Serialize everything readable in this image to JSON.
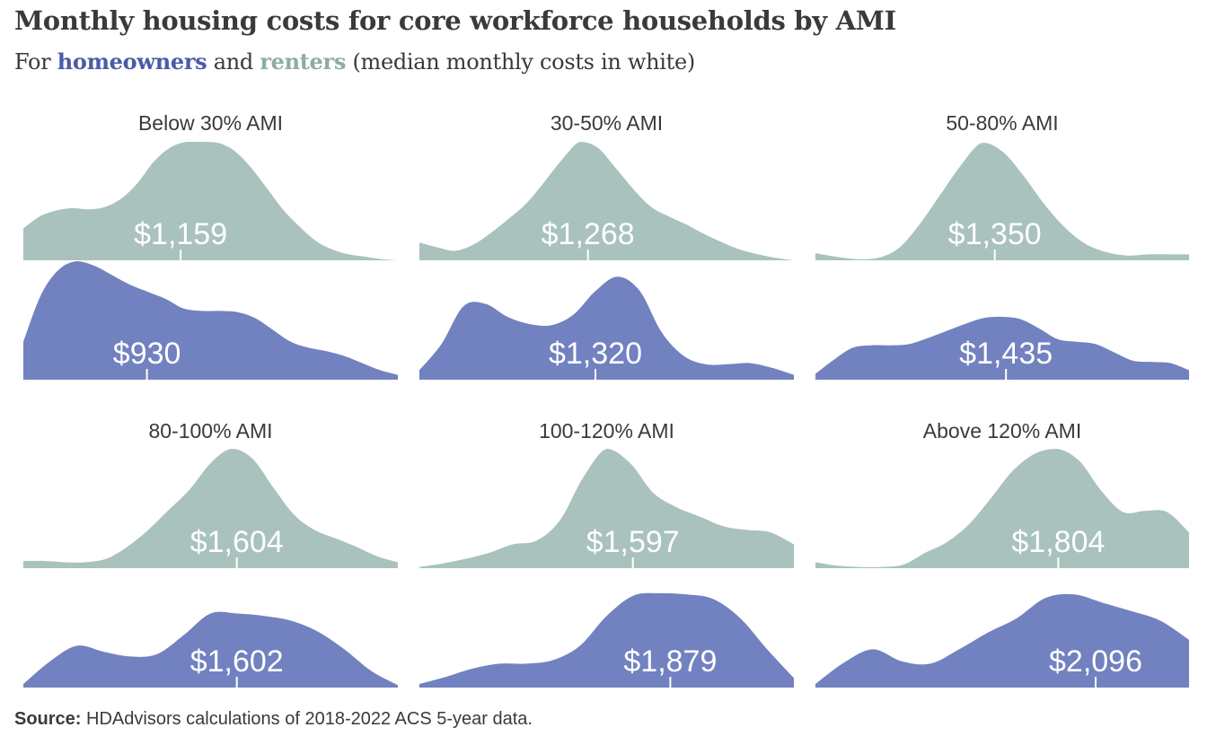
{
  "title": "Monthly housing costs for core workforce households by AMI",
  "subtitle": {
    "prefix": "For",
    "homeowners": "homeowners",
    "middle": "and",
    "renters": "renters",
    "suffix": "(median monthly costs in white)"
  },
  "source": {
    "label": "Source:",
    "text": "HDAdvisors calculations of 2018-2022 ACS 5-year data."
  },
  "colors": {
    "renters": "#a9c2bd",
    "homeowners": "#7281bf",
    "median_text": "#ffffff",
    "tick": "#ffffff"
  },
  "chart_data": {
    "type": "area",
    "description_kind": "density ridgelines",
    "xlim": [
      0,
      1
    ],
    "series": [
      {
        "name": "renters",
        "color": "#a9c2bd",
        "panels": [
          {
            "title": "Below 30% AMI",
            "median": "$1,159",
            "median_pos": 0.42,
            "density": [
              0.27,
              0.37,
              0.42,
              0.44,
              0.43,
              0.45,
              0.52,
              0.65,
              0.83,
              0.95,
              1.0,
              1.0,
              0.99,
              0.92,
              0.78,
              0.6,
              0.42,
              0.28,
              0.16,
              0.09,
              0.05,
              0.03,
              0.01,
              0.0
            ]
          },
          {
            "title": "30-50% AMI",
            "median": "$1,268",
            "median_pos": 0.45,
            "density": [
              0.15,
              0.11,
              0.08,
              0.13,
              0.23,
              0.35,
              0.48,
              0.66,
              0.85,
              1.0,
              0.95,
              0.78,
              0.6,
              0.45,
              0.37,
              0.3,
              0.22,
              0.15,
              0.09,
              0.05,
              0.02,
              0.0
            ]
          },
          {
            "title": "50-80% AMI",
            "median": "$1,350",
            "median_pos": 0.48,
            "density": [
              0.06,
              0.03,
              0.01,
              0.02,
              0.1,
              0.3,
              0.55,
              0.8,
              0.99,
              0.92,
              0.72,
              0.48,
              0.28,
              0.14,
              0.07,
              0.04,
              0.05,
              0.05,
              0.05
            ]
          }
        ]
      },
      {
        "name": "homeowners",
        "color": "#7281bf",
        "panels": [
          {
            "title": "Below 30% AMI",
            "median": "$930",
            "median_pos": 0.33,
            "density": [
              0.32,
              0.72,
              0.93,
              1.0,
              0.96,
              0.88,
              0.8,
              0.74,
              0.68,
              0.6,
              0.58,
              0.58,
              0.57,
              0.52,
              0.42,
              0.32,
              0.27,
              0.24,
              0.2,
              0.14,
              0.08,
              0.04
            ]
          },
          {
            "title": "30-50% AMI",
            "median": "$1,320",
            "median_pos": 0.47,
            "density": [
              0.08,
              0.3,
              0.62,
              0.64,
              0.53,
              0.47,
              0.46,
              0.55,
              0.75,
              0.87,
              0.75,
              0.4,
              0.2,
              0.13,
              0.13,
              0.14,
              0.1,
              0.04
            ]
          },
          {
            "title": "50-80% AMI",
            "median": "$1,435",
            "median_pos": 0.51,
            "density": [
              0.05,
              0.17,
              0.27,
              0.29,
              0.29,
              0.3,
              0.35,
              0.41,
              0.47,
              0.52,
              0.53,
              0.51,
              0.43,
              0.34,
              0.32,
              0.3,
              0.23,
              0.16,
              0.15,
              0.14,
              0.08
            ]
          }
        ]
      },
      {
        "name": "renters",
        "color": "#a9c2bd",
        "panels": [
          {
            "title": "80-100% AMI",
            "median": "$1,604",
            "median_pos": 0.57,
            "density": [
              0.06,
              0.06,
              0.05,
              0.05,
              0.08,
              0.18,
              0.32,
              0.49,
              0.66,
              0.88,
              1.0,
              0.92,
              0.68,
              0.45,
              0.32,
              0.25,
              0.18,
              0.1,
              0.05
            ]
          },
          {
            "title": "100-120% AMI",
            "median": "$1,597",
            "median_pos": 0.57,
            "density": [
              0.01,
              0.04,
              0.08,
              0.13,
              0.2,
              0.23,
              0.4,
              0.76,
              1.0,
              0.88,
              0.63,
              0.51,
              0.43,
              0.35,
              0.32,
              0.3,
              0.2
            ]
          },
          {
            "title": "Above 120% AMI",
            "median": "$1,804",
            "median_pos": 0.65,
            "density": [
              0.05,
              0.02,
              0.01,
              0.01,
              0.03,
              0.13,
              0.22,
              0.37,
              0.59,
              0.82,
              0.96,
              1.0,
              0.9,
              0.65,
              0.47,
              0.48,
              0.47,
              0.3
            ]
          }
        ]
      },
      {
        "name": "homeowners",
        "color": "#7281bf",
        "panels": [
          {
            "title": "80-100% AMI",
            "median": "$1,602",
            "median_pos": 0.57,
            "density": [
              0.03,
              0.22,
              0.35,
              0.3,
              0.26,
              0.28,
              0.44,
              0.62,
              0.62,
              0.6,
              0.56,
              0.47,
              0.32,
              0.14,
              0.02
            ]
          },
          {
            "title": "100-120% AMI",
            "median": "$1,879",
            "median_pos": 0.67,
            "density": [
              0.03,
              0.09,
              0.16,
              0.2,
              0.2,
              0.23,
              0.35,
              0.6,
              0.77,
              0.79,
              0.78,
              0.74,
              0.58,
              0.32,
              0.08
            ]
          },
          {
            "title": "Above 120% AMI",
            "median": "$2,096",
            "median_pos": 0.75,
            "density": [
              0.03,
              0.21,
              0.32,
              0.22,
              0.2,
              0.32,
              0.46,
              0.58,
              0.75,
              0.78,
              0.71,
              0.64,
              0.56,
              0.4
            ]
          }
        ]
      }
    ]
  }
}
